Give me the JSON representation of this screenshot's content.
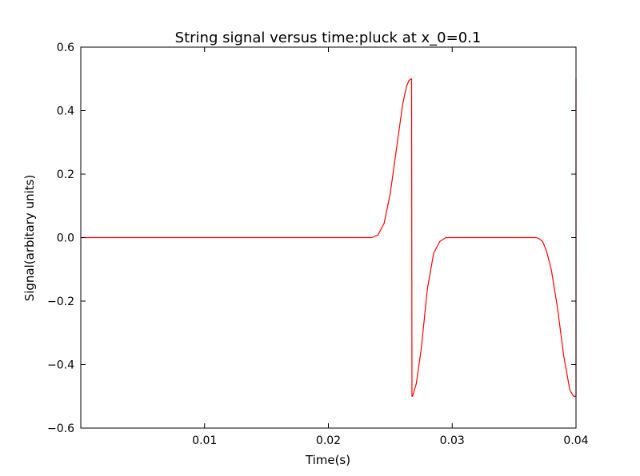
{
  "chart_data": {
    "type": "line",
    "title": "String signal versus time:pluck at x_0=0.1",
    "xlabel": "Time(s)",
    "ylabel": "Signal(arbitary units)",
    "xlim": [
      0.0,
      0.04
    ],
    "ylim": [
      -0.6,
      0.6
    ],
    "x_ticks": [
      0.01,
      0.02,
      0.03,
      0.04
    ],
    "x_tick_labels": [
      "0.01",
      "0.02",
      "0.03",
      "0.04"
    ],
    "y_ticks": [
      -0.6,
      -0.4,
      -0.2,
      0.0,
      0.2,
      0.4,
      0.6
    ],
    "y_tick_labels": [
      "−0.6",
      "−0.4",
      "−0.2",
      "0.0",
      "0.2",
      "0.4",
      "0.6"
    ],
    "grid": false,
    "line_color": "#ff0000",
    "series": [
      {
        "x": [
          0.0,
          0.01,
          0.02,
          0.0235,
          0.024,
          0.0245,
          0.025,
          0.0255,
          0.026,
          0.0263,
          0.0265,
          0.0267,
          0.02672,
          0.02675,
          0.0268,
          0.0271,
          0.0275,
          0.028,
          0.0285,
          0.029,
          0.0295,
          0.0297,
          0.03,
          0.035,
          0.0368,
          0.037,
          0.0373,
          0.0376,
          0.038,
          0.0385,
          0.039,
          0.0395,
          0.0398,
          0.03995,
          0.04,
          0.04
        ],
        "y": [
          0.0,
          0.0,
          0.0,
          0.0,
          0.008,
          0.045,
          0.14,
          0.28,
          0.42,
          0.475,
          0.495,
          0.5,
          0.5,
          -0.5,
          -0.5,
          -0.46,
          -0.35,
          -0.16,
          -0.05,
          -0.012,
          0.0,
          0.0,
          0.0,
          0.0,
          0.0,
          -0.003,
          -0.012,
          -0.04,
          -0.1,
          -0.22,
          -0.37,
          -0.48,
          -0.5,
          -0.5,
          -0.5,
          0.5
        ]
      }
    ]
  }
}
